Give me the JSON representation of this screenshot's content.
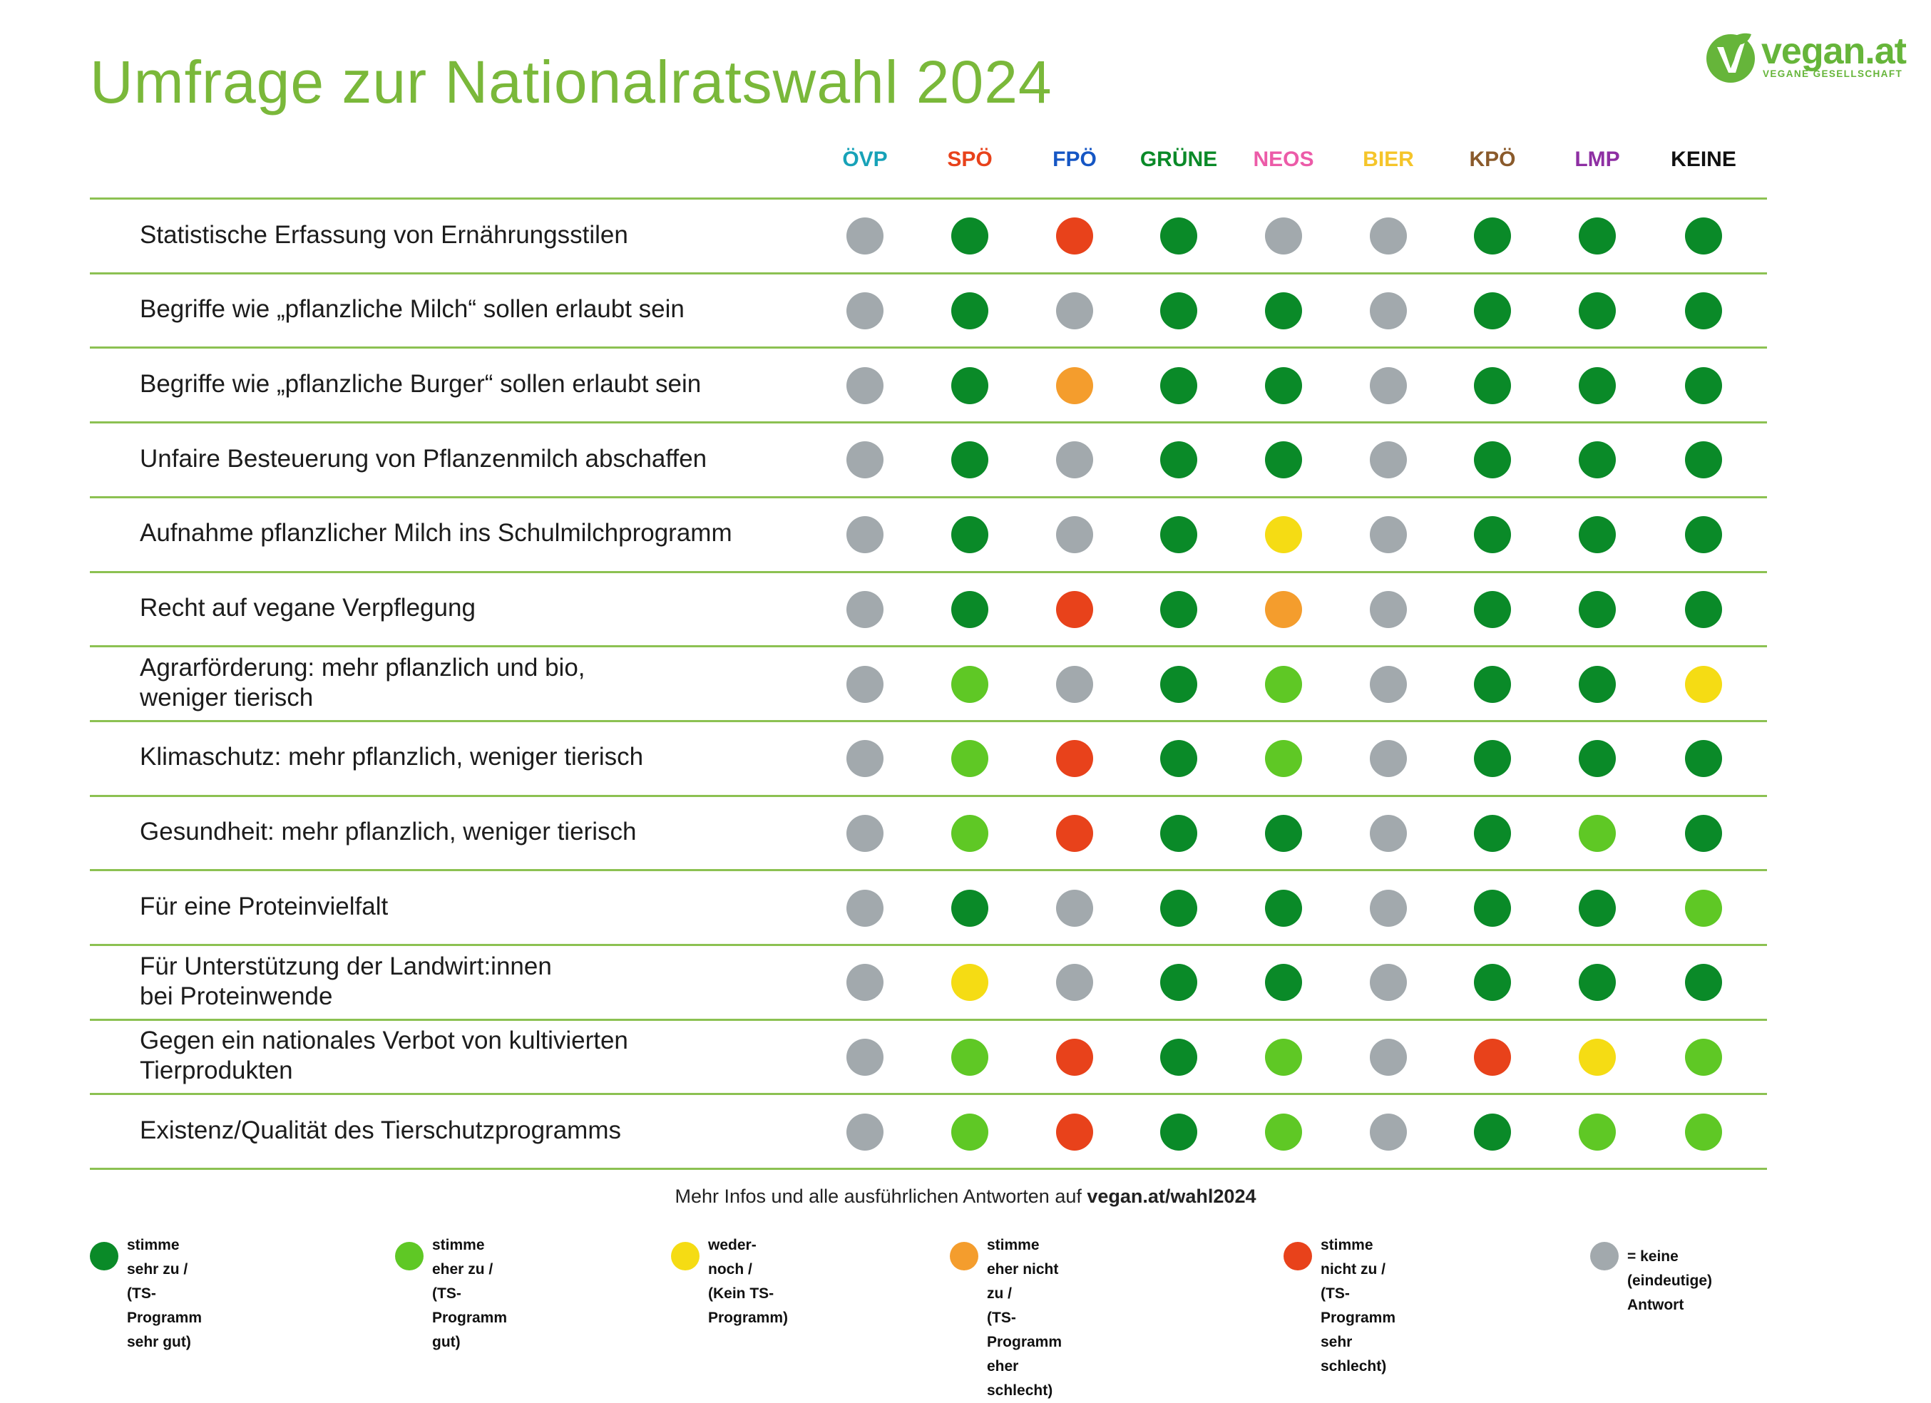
{
  "title": "Umfrage zur Nationalratswahl 2024",
  "logo": {
    "text": "vegan.at",
    "subtitle": "VEGANE GESELLSCHAFT"
  },
  "colors": {
    "brand": "#7ab83a",
    "sehr_zu": "#0a8a28",
    "eher_zu": "#5fc825",
    "weder": "#f5dc14",
    "eher_nicht": "#f49d2d",
    "nicht": "#e8421b",
    "keine": "#a2a9ad"
  },
  "parties": [
    {
      "name": "ÖVP",
      "color": "#17a2b8"
    },
    {
      "name": "SPÖ",
      "color": "#e8421b"
    },
    {
      "name": "FPÖ",
      "color": "#1556c4"
    },
    {
      "name": "GRÜNE",
      "color": "#0a8a28"
    },
    {
      "name": "NEOS",
      "color": "#ec5ba8"
    },
    {
      "name": "BIER",
      "color": "#f5c52a"
    },
    {
      "name": "KPÖ",
      "color": "#8a5a2b"
    },
    {
      "name": "LMP",
      "color": "#8e2fa3"
    },
    {
      "name": "KEINE",
      "color": "#111111"
    }
  ],
  "rows": [
    {
      "label": "Statistische Erfassung von Ernährungsstilen",
      "answers": [
        "keine",
        "sehr_zu",
        "nicht",
        "sehr_zu",
        "keine",
        "keine",
        "sehr_zu",
        "sehr_zu",
        "sehr_zu"
      ]
    },
    {
      "label": "Begriffe wie „pflanzliche Milch“ sollen erlaubt sein",
      "answers": [
        "keine",
        "sehr_zu",
        "keine",
        "sehr_zu",
        "sehr_zu",
        "keine",
        "sehr_zu",
        "sehr_zu",
        "sehr_zu"
      ]
    },
    {
      "label": "Begriffe wie „pflanzliche Burger“ sollen erlaubt sein",
      "answers": [
        "keine",
        "sehr_zu",
        "eher_nicht",
        "sehr_zu",
        "sehr_zu",
        "keine",
        "sehr_zu",
        "sehr_zu",
        "sehr_zu"
      ]
    },
    {
      "label": "Unfaire Besteuerung von Pflanzenmilch abschaffen",
      "answers": [
        "keine",
        "sehr_zu",
        "keine",
        "sehr_zu",
        "sehr_zu",
        "keine",
        "sehr_zu",
        "sehr_zu",
        "sehr_zu"
      ]
    },
    {
      "label": "Aufnahme pflanzlicher Milch ins Schulmilchprogramm",
      "answers": [
        "keine",
        "sehr_zu",
        "keine",
        "sehr_zu",
        "weder",
        "keine",
        "sehr_zu",
        "sehr_zu",
        "sehr_zu"
      ]
    },
    {
      "label": "Recht auf vegane Verpflegung",
      "answers": [
        "keine",
        "sehr_zu",
        "nicht",
        "sehr_zu",
        "eher_nicht",
        "keine",
        "sehr_zu",
        "sehr_zu",
        "sehr_zu"
      ]
    },
    {
      "label": "Agrarförderung: mehr pflanzlich und bio,\nweniger tierisch",
      "answers": [
        "keine",
        "eher_zu",
        "keine",
        "sehr_zu",
        "eher_zu",
        "keine",
        "sehr_zu",
        "sehr_zu",
        "weder"
      ]
    },
    {
      "label": "Klimaschutz: mehr pflanzlich, weniger tierisch",
      "answers": [
        "keine",
        "eher_zu",
        "nicht",
        "sehr_zu",
        "eher_zu",
        "keine",
        "sehr_zu",
        "sehr_zu",
        "sehr_zu"
      ]
    },
    {
      "label": "Gesundheit: mehr pflanzlich, weniger tierisch",
      "answers": [
        "keine",
        "eher_zu",
        "nicht",
        "sehr_zu",
        "sehr_zu",
        "keine",
        "sehr_zu",
        "eher_zu",
        "sehr_zu"
      ]
    },
    {
      "label": "Für eine Proteinvielfalt",
      "answers": [
        "keine",
        "sehr_zu",
        "keine",
        "sehr_zu",
        "sehr_zu",
        "keine",
        "sehr_zu",
        "sehr_zu",
        "eher_zu"
      ]
    },
    {
      "label": "Für Unterstützung der Landwirt:innen\nbei Proteinwende",
      "answers": [
        "keine",
        "weder",
        "keine",
        "sehr_zu",
        "sehr_zu",
        "keine",
        "sehr_zu",
        "sehr_zu",
        "sehr_zu"
      ]
    },
    {
      "label": "Gegen ein nationales Verbot von kultivierten\nTierprodukten",
      "answers": [
        "keine",
        "eher_zu",
        "nicht",
        "sehr_zu",
        "eher_zu",
        "keine",
        "nicht",
        "weder",
        "eher_zu"
      ]
    },
    {
      "label": "Existenz/Qualität des Tierschutzprogramms",
      "answers": [
        "keine",
        "eher_zu",
        "nicht",
        "sehr_zu",
        "eher_zu",
        "keine",
        "sehr_zu",
        "eher_zu",
        "eher_zu"
      ]
    }
  ],
  "footer": {
    "text": "Mehr Infos und alle ausführlichen Antworten auf ",
    "link": "vegan.at/wahl2024"
  },
  "legend": [
    {
      "key": "sehr_zu",
      "text": "stimme sehr zu /\n(TS-Programm sehr gut)"
    },
    {
      "key": "eher_zu",
      "text": "stimme eher zu /\n(TS-Programm gut)"
    },
    {
      "key": "weder",
      "text": "weder-noch /\n(Kein TS-Programm)"
    },
    {
      "key": "eher_nicht",
      "text": "stimme eher nicht zu /\n(TS-Programm eher schlecht)"
    },
    {
      "key": "nicht",
      "text": "stimme nicht zu /\n(TS-Programm sehr schlecht)"
    },
    {
      "key": "keine",
      "text": "= keine (eindeutige) Antwort"
    }
  ]
}
